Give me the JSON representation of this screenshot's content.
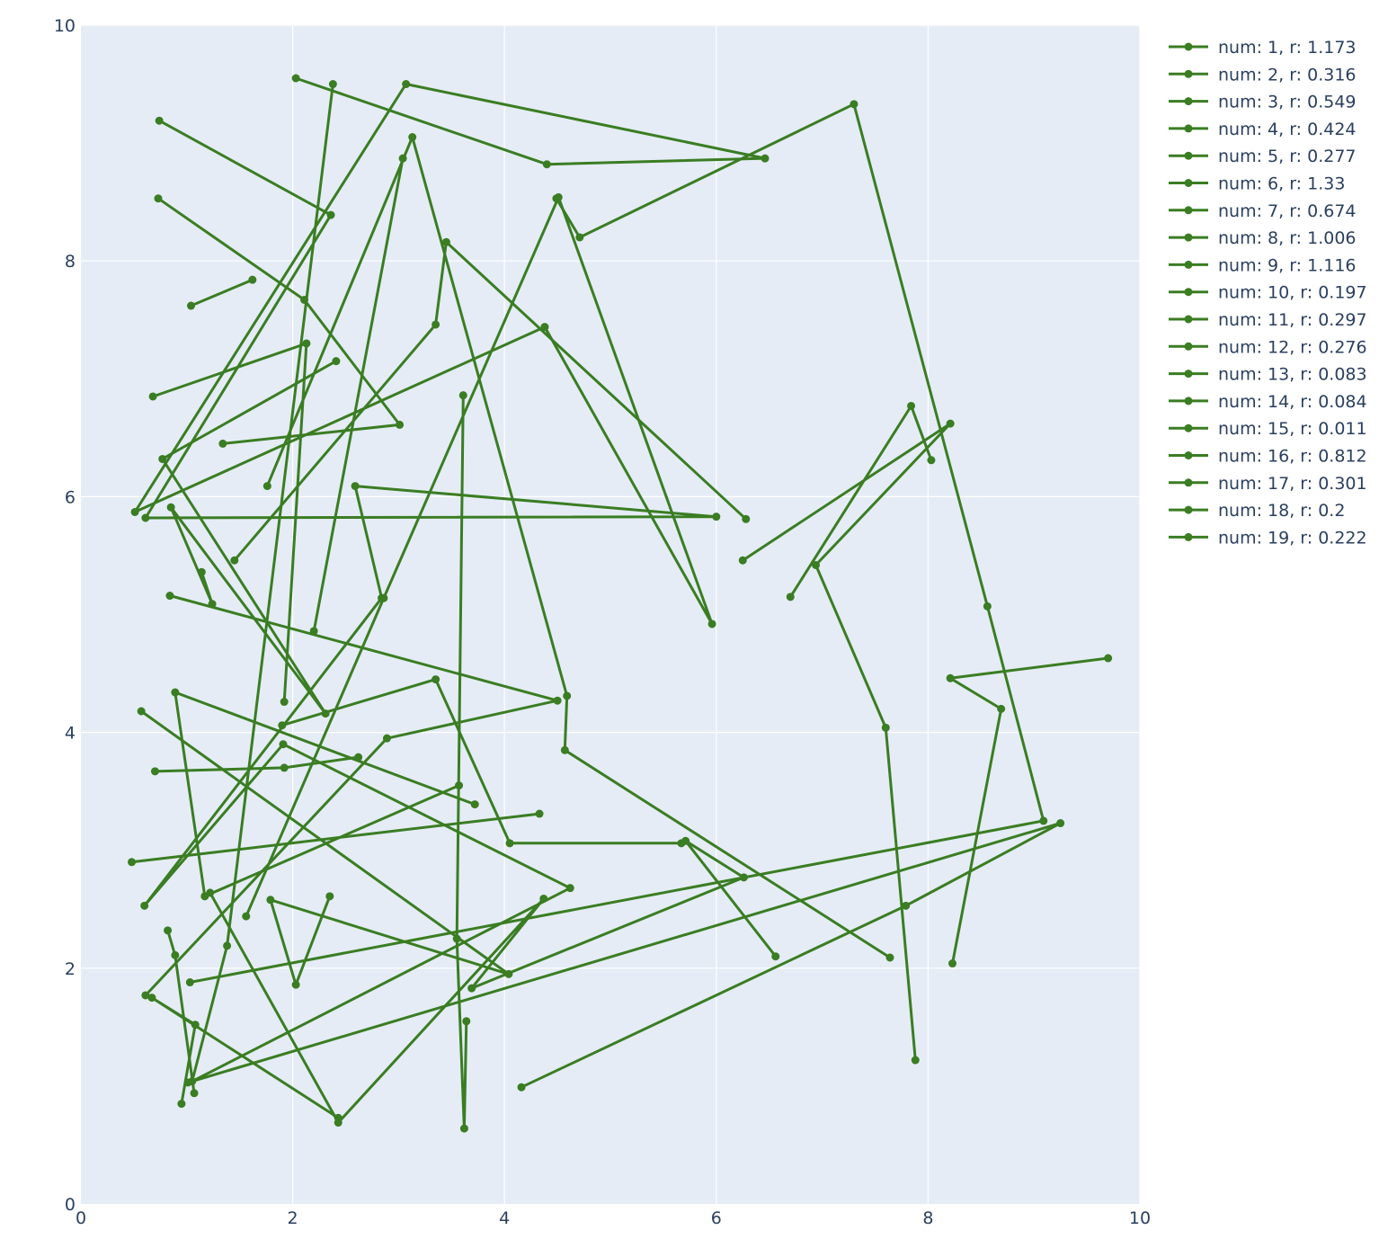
{
  "chart_data": {
    "type": "line",
    "title": "",
    "xlabel": "",
    "ylabel": "",
    "xlim": [
      0,
      10
    ],
    "ylim": [
      0,
      10
    ],
    "x_ticks": [
      0,
      2,
      4,
      6,
      8,
      10
    ],
    "y_ticks": [
      0,
      2,
      4,
      6,
      8,
      10
    ],
    "x_tick_labels": [
      "0",
      "2",
      "4",
      "6",
      "8",
      "10"
    ],
    "y_tick_labels": [
      "0",
      "2",
      "4",
      "6",
      "8",
      "10"
    ],
    "grid": true,
    "legend_position": "right",
    "colors": {
      "series": "#3a7d22",
      "plot_background": "#e5ecf6",
      "grid": "#ffffff",
      "text": "#2a3f5f"
    },
    "series": [
      {
        "name": "num: 1, r: 1.173",
        "points": [
          [
            1.04,
            7.62
          ],
          [
            1.62,
            7.84
          ]
        ]
      },
      {
        "name": "num: 2, r: 0.316",
        "points": [
          [
            0.57,
            4.18
          ],
          [
            4.04,
            1.95
          ],
          [
            1.79,
            2.58
          ],
          [
            2.03,
            1.86
          ],
          [
            2.35,
            2.61
          ]
        ]
      },
      {
        "name": "num: 3, r: 0.549",
        "points": [
          [
            1.14,
            5.36
          ],
          [
            1.24,
            5.09
          ],
          [
            0.85,
            5.91
          ],
          [
            2.31,
            4.16
          ],
          [
            0.77,
            6.32
          ],
          [
            2.41,
            7.15
          ]
        ]
      },
      {
        "name": "num: 4, r: 0.424",
        "points": [
          [
            1.92,
            4.26
          ],
          [
            2.13,
            7.3
          ],
          [
            0.68,
            6.85
          ]
        ]
      },
      {
        "name": "num: 5, r: 0.277",
        "points": [
          [
            3.61,
            6.86
          ],
          [
            3.55,
            2.25
          ],
          [
            3.62,
            0.64
          ],
          [
            3.64,
            1.55
          ]
        ]
      },
      {
        "name": "num: 6, r: 1.33",
        "points": [
          [
            0.74,
            9.19
          ],
          [
            2.36,
            8.39
          ],
          [
            0.61,
            5.82
          ],
          [
            6.0,
            5.83
          ],
          [
            2.59,
            6.09
          ],
          [
            2.84,
            5.14
          ],
          [
            0.6,
            2.53
          ],
          [
            1.91,
            3.9
          ],
          [
            4.62,
            2.68
          ],
          [
            1.05,
            1.04
          ],
          [
            1.38,
            2.19
          ],
          [
            2.38,
            9.5
          ]
        ]
      },
      {
        "name": "num: 7, r: 0.674",
        "points": [
          [
            6.25,
            5.46
          ],
          [
            8.21,
            6.62
          ],
          [
            6.94,
            5.42
          ],
          [
            7.6,
            4.04
          ],
          [
            7.88,
            1.22
          ]
        ]
      },
      {
        "name": "num: 8, r: 1.006",
        "points": [
          [
            1.34,
            6.45
          ],
          [
            3.01,
            6.61
          ],
          [
            2.11,
            7.67
          ],
          [
            0.73,
            8.53
          ]
        ]
      },
      {
        "name": "num: 9, r: 1.116",
        "points": [
          [
            2.03,
            9.55
          ],
          [
            4.4,
            8.82
          ],
          [
            6.46,
            8.87
          ],
          [
            3.07,
            9.5
          ],
          [
            0.51,
            5.87
          ],
          [
            4.38,
            7.44
          ],
          [
            5.96,
            4.92
          ],
          [
            4.51,
            8.54
          ],
          [
            2.86,
            5.14
          ],
          [
            1.56,
            2.44
          ]
        ]
      },
      {
        "name": "num: 10, r: 0.197",
        "points": [
          [
            1.9,
            4.06
          ],
          [
            3.35,
            4.45
          ],
          [
            4.05,
            3.06
          ],
          [
            5.67,
            3.06
          ]
        ]
      },
      {
        "name": "num: 11, r: 0.297",
        "points": [
          [
            4.49,
            8.53
          ],
          [
            4.71,
            8.2
          ],
          [
            7.3,
            9.33
          ],
          [
            8.56,
            5.07
          ],
          [
            9.09,
            3.25
          ],
          [
            1.03,
            1.88
          ]
        ]
      },
      {
        "name": "num: 12, r: 0.276",
        "points": [
          [
            8.23,
            2.04
          ],
          [
            8.69,
            4.2
          ],
          [
            8.21,
            4.46
          ],
          [
            9.7,
            4.63
          ]
        ]
      },
      {
        "name": "num: 13, r: 0.083",
        "points": [
          [
            1.45,
            5.46
          ],
          [
            3.35,
            7.46
          ],
          [
            3.45,
            8.16
          ],
          [
            6.28,
            5.81
          ]
        ]
      },
      {
        "name": "num: 14, r: 0.084",
        "points": [
          [
            0.84,
            5.16
          ],
          [
            4.5,
            4.27
          ],
          [
            2.89,
            3.95
          ],
          [
            0.61,
            1.77
          ]
        ]
      },
      {
        "name": "num: 15, r: 0.011",
        "points": [
          [
            0.82,
            2.32
          ],
          [
            0.89,
            2.11
          ],
          [
            1.07,
            0.94
          ]
        ]
      },
      {
        "name": "num: 16, r: 0.812",
        "points": [
          [
            0.48,
            2.9
          ],
          [
            4.33,
            3.31
          ]
        ]
      },
      {
        "name": "num: 17, r: 0.301",
        "points": [
          [
            1.76,
            6.09
          ],
          [
            3.13,
            9.05
          ],
          [
            4.59,
            4.31
          ],
          [
            4.57,
            3.85
          ],
          [
            7.64,
            2.09
          ]
        ]
      },
      {
        "name": "num: 18, r: 0.2",
        "points": [
          [
            6.7,
            5.15
          ],
          [
            7.84,
            6.77
          ],
          [
            8.03,
            6.31
          ]
        ]
      },
      {
        "name": "num: 19, r: 0.222",
        "points": [
          [
            3.57,
            3.55
          ],
          [
            1.17,
            2.61
          ],
          [
            0.89,
            4.34
          ],
          [
            3.72,
            3.39
          ]
        ]
      },
      {
        "name": "",
        "points": [
          [
            0.95,
            0.85
          ],
          [
            1.08,
            1.52
          ],
          [
            0.67,
            1.75
          ],
          [
            2.43,
            0.73
          ]
        ]
      },
      {
        "name": "",
        "points": [
          [
            1.22,
            2.64
          ],
          [
            2.43,
            0.69
          ],
          [
            4.37,
            2.59
          ],
          [
            3.69,
            1.83
          ],
          [
            6.26,
            2.77
          ],
          [
            5.71,
            3.08
          ],
          [
            6.56,
            2.1
          ]
        ]
      },
      {
        "name": "",
        "points": [
          [
            0.7,
            3.67
          ],
          [
            1.92,
            3.7
          ],
          [
            2.62,
            3.79
          ]
        ]
      },
      {
        "name": "",
        "points": [
          [
            4.16,
            0.99
          ],
          [
            7.79,
            2.53
          ],
          [
            9.25,
            3.23
          ],
          [
            1.01,
            1.03
          ]
        ]
      },
      {
        "name": "",
        "points": [
          [
            3.04,
            8.87
          ],
          [
            2.2,
            4.86
          ]
        ]
      }
    ]
  }
}
